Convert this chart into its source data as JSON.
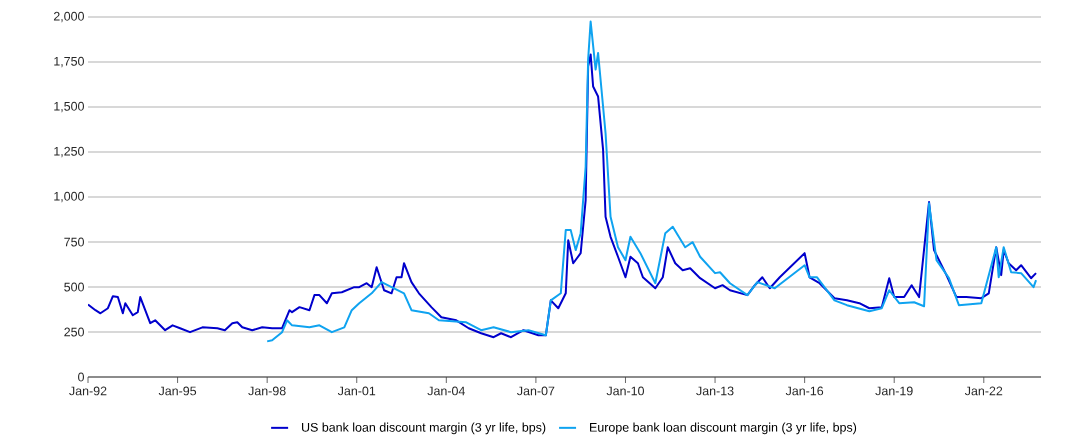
{
  "chart_data": {
    "type": "line",
    "xlim": [
      "1992-01",
      "2023-12"
    ],
    "ylim": [
      0,
      2000
    ],
    "xticks": [
      {
        "value": "1992-01",
        "label": "Jan-92"
      },
      {
        "value": "1995-01",
        "label": "Jan-95"
      },
      {
        "value": "1998-01",
        "label": "Jan-98"
      },
      {
        "value": "2001-01",
        "label": "Jan-01"
      },
      {
        "value": "2004-01",
        "label": "Jan-04"
      },
      {
        "value": "2007-01",
        "label": "Jan-07"
      },
      {
        "value": "2010-01",
        "label": "Jan-10"
      },
      {
        "value": "2013-01",
        "label": "Jan-13"
      },
      {
        "value": "2016-01",
        "label": "Jan-16"
      },
      {
        "value": "2019-01",
        "label": "Jan-19"
      },
      {
        "value": "2022-01",
        "label": "Jan-22"
      }
    ],
    "yticks": [
      0,
      250,
      500,
      750,
      {
        "value": 1000,
        "label": "1,000"
      },
      {
        "value": 1250,
        "label": "1,250"
      },
      {
        "value": 1500,
        "label": "1,500"
      },
      {
        "value": 1750,
        "label": "1,750"
      },
      {
        "value": 2000,
        "label": "2,000"
      }
    ],
    "grid": "y",
    "legend": "bottom",
    "marker": "none",
    "line_style": "solid",
    "series": [
      {
        "name": "US bank loan discount margin (3 yr life, bps)",
        "color": "#0000cc",
        "x": [
          "1992-01",
          "1992-04",
          "1992-06",
          "1992-09",
          "1992-11",
          "1993-01",
          "1993-03",
          "1993-04",
          "1993-07",
          "1993-09",
          "1993-10",
          "1993-12",
          "1994-02",
          "1994-04",
          "1994-08",
          "1994-11",
          "1995-02",
          "1995-06",
          "1995-11",
          "1996-05",
          "1996-08",
          "1996-11",
          "1997-01",
          "1997-03",
          "1997-07",
          "1997-11",
          "1998-03",
          "1998-07",
          "1998-10",
          "1998-11",
          "1999-02",
          "1999-06",
          "1999-08",
          "1999-10",
          "2000-01",
          "2000-03",
          "2000-07",
          "2000-12",
          "2001-02",
          "2001-05",
          "2001-07",
          "2001-09",
          "2001-12",
          "2002-03",
          "2002-05",
          "2002-07",
          "2002-08",
          "2002-11",
          "2003-02",
          "2003-07",
          "2003-11",
          "2004-05",
          "2004-10",
          "2005-03",
          "2005-08",
          "2005-11",
          "2006-03",
          "2006-08",
          "2007-02",
          "2007-05",
          "2007-07",
          "2007-10",
          "2008-01",
          "2008-02",
          "2008-04",
          "2008-07",
          "2008-09",
          "2008-10",
          "2008-11",
          "2008-12",
          "2009-02",
          "2009-04",
          "2009-05",
          "2009-07",
          "2009-10",
          "2010-01",
          "2010-03",
          "2010-06",
          "2010-08",
          "2011-01",
          "2011-04",
          "2011-06",
          "2011-09",
          "2011-12",
          "2012-03",
          "2012-07",
          "2013-01",
          "2013-04",
          "2013-07",
          "2014-02",
          "2014-05",
          "2014-08",
          "2014-11",
          "2015-03",
          "2016-01",
          "2016-03",
          "2016-07",
          "2017-01",
          "2017-06",
          "2017-11",
          "2018-03",
          "2018-08",
          "2018-11",
          "2019-01",
          "2019-05",
          "2019-08",
          "2019-11",
          "2020-03",
          "2020-05",
          "2020-10",
          "2021-02",
          "2021-06",
          "2021-12",
          "2022-03",
          "2022-06",
          "2022-08",
          "2022-09",
          "2022-11",
          "2023-02",
          "2023-04",
          "2023-08",
          "2023-10"
        ],
        "values": [
          403,
          371,
          354,
          382,
          449,
          444,
          354,
          410,
          343,
          360,
          444,
          371,
          299,
          315,
          260,
          287,
          271,
          249,
          276,
          271,
          260,
          299,
          304,
          276,
          260,
          276,
          271,
          271,
          371,
          360,
          388,
          371,
          455,
          455,
          410,
          465,
          471,
          499,
          499,
          521,
          499,
          610,
          482,
          465,
          554,
          554,
          632,
          527,
          465,
          388,
          332,
          315,
          271,
          243,
          221,
          243,
          221,
          260,
          232,
          232,
          426,
          382,
          465,
          760,
          632,
          688,
          983,
          1725,
          1792,
          1614,
          1558,
          1263,
          890,
          779,
          668,
          554,
          668,
          632,
          554,
          493,
          554,
          721,
          632,
          593,
          604,
          549,
          493,
          510,
          482,
          455,
          510,
          554,
          493,
          554,
          688,
          554,
          521,
          438,
          426,
          410,
          382,
          388,
          549,
          444,
          444,
          510,
          444,
          972,
          705,
          566,
          444,
          444,
          438,
          465,
          721,
          566,
          705,
          632,
          593,
          621,
          549,
          577
        ]
      },
      {
        "name": "Europe bank loan discount margin (3 yr life, bps)",
        "color": "#0fa3f0",
        "x": [
          "1998-01",
          "1998-03",
          "1998-07",
          "1998-09",
          "1998-11",
          "1999-06",
          "1999-10",
          "2000-03",
          "2000-08",
          "2000-11",
          "2001-02",
          "2001-07",
          "2001-11",
          "2002-03",
          "2002-08",
          "2002-11",
          "2003-06",
          "2003-10",
          "2004-09",
          "2005-03",
          "2005-08",
          "2006-03",
          "2006-10",
          "2007-05",
          "2007-07",
          "2007-11",
          "2008-01",
          "2008-03",
          "2008-05",
          "2008-07",
          "2008-09",
          "2008-10",
          "2008-11",
          "2009-01",
          "2009-02",
          "2009-05",
          "2009-07",
          "2009-10",
          "2010-01",
          "2010-03",
          "2010-07",
          "2011-01",
          "2011-05",
          "2011-08",
          "2012-01",
          "2012-04",
          "2012-07",
          "2013-01",
          "2013-03",
          "2013-07",
          "2014-02",
          "2014-06",
          "2015-01",
          "2016-01",
          "2016-03",
          "2016-06",
          "2017-01",
          "2017-06",
          "2018-03",
          "2018-08",
          "2018-11",
          "2019-03",
          "2019-09",
          "2020-01",
          "2020-03",
          "2020-06",
          "2020-11",
          "2021-03",
          "2021-12",
          "2022-06",
          "2022-07",
          "2022-09",
          "2022-12",
          "2023-04",
          "2023-09",
          "2023-10"
        ],
        "values": [
          198,
          204,
          249,
          315,
          287,
          276,
          287,
          249,
          276,
          371,
          410,
          465,
          527,
          499,
          465,
          371,
          354,
          315,
          304,
          260,
          276,
          249,
          260,
          232,
          426,
          465,
          816,
          816,
          705,
          799,
          1168,
          1764,
          1975,
          1708,
          1800,
          1354,
          890,
          721,
          649,
          779,
          688,
          521,
          799,
          835,
          721,
          749,
          668,
          577,
          582,
          521,
          455,
          527,
          493,
          621,
          554,
          554,
          426,
          399,
          365,
          382,
          482,
          410,
          415,
          393,
          965,
          649,
          549,
          399,
          410,
          721,
          554,
          721,
          582,
          577,
          499,
          538
        ]
      }
    ]
  }
}
